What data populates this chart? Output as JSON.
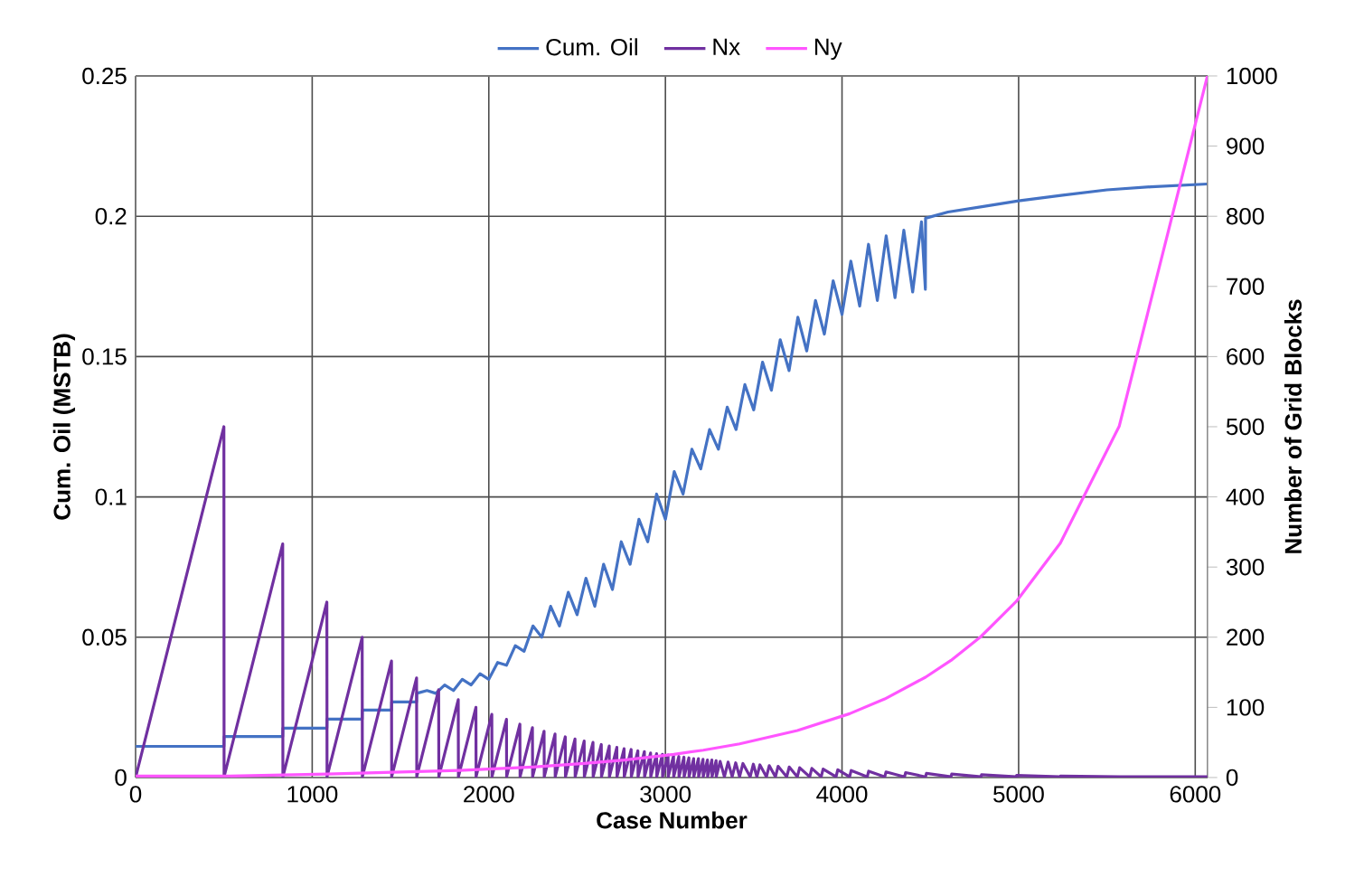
{
  "chart_data": {
    "type": "line",
    "xlabel": "Case Number",
    "ylabel": "Cum. Oil (MSTB)",
    "y2label": "Number of Grid Blocks",
    "xlim": [
      0,
      6070
    ],
    "xticks": [
      0,
      1000,
      2000,
      3000,
      4000,
      5000,
      6000
    ],
    "ylim": [
      0,
      0.25
    ],
    "yticks": [
      0,
      0.05,
      0.1,
      0.15,
      0.2,
      0.25
    ],
    "y2lim": [
      0,
      1000
    ],
    "y2ticks": [
      0,
      100,
      200,
      300,
      400,
      500,
      600,
      700,
      800,
      900,
      1000
    ],
    "grid": true,
    "legend": "top",
    "marker": "none",
    "line_style": "solid",
    "series": [
      {
        "name": "Cum. Oil",
        "color": "#4472c4",
        "x": [
          1,
          500,
          501,
          833,
          834,
          1083,
          1084,
          1283,
          1284,
          1449,
          1450,
          1591,
          1592,
          1650,
          1700,
          1750,
          1800,
          1850,
          1900,
          1950,
          2000,
          2050,
          2100,
          2150,
          2200,
          2250,
          2300,
          2350,
          2400,
          2450,
          2500,
          2550,
          2600,
          2650,
          2700,
          2750,
          2800,
          2850,
          2900,
          2950,
          3000,
          3050,
          3100,
          3150,
          3200,
          3250,
          3300,
          3350,
          3400,
          3450,
          3500,
          3550,
          3600,
          3650,
          3700,
          3750,
          3800,
          3850,
          3900,
          3950,
          4000,
          4050,
          4100,
          4150,
          4200,
          4250,
          4300,
          4350,
          4400,
          4450,
          4472,
          4473,
          4600,
          4800,
          5000,
          5250,
          5500,
          5750,
          6069
        ],
        "values": [
          0.0111,
          0.0111,
          0.0146,
          0.0146,
          0.0176,
          0.0176,
          0.0208,
          0.0208,
          0.024,
          0.024,
          0.0269,
          0.0269,
          0.03,
          0.031,
          0.03,
          0.033,
          0.031,
          0.035,
          0.033,
          0.037,
          0.035,
          0.041,
          0.04,
          0.047,
          0.045,
          0.054,
          0.05,
          0.061,
          0.054,
          0.066,
          0.058,
          0.071,
          0.061,
          0.076,
          0.067,
          0.084,
          0.076,
          0.092,
          0.084,
          0.101,
          0.092,
          0.109,
          0.101,
          0.117,
          0.11,
          0.124,
          0.117,
          0.132,
          0.124,
          0.14,
          0.131,
          0.148,
          0.138,
          0.156,
          0.145,
          0.164,
          0.152,
          0.17,
          0.158,
          0.177,
          0.165,
          0.184,
          0.168,
          0.19,
          0.17,
          0.193,
          0.171,
          0.195,
          0.173,
          0.198,
          0.174,
          0.1993,
          0.2015,
          0.2035,
          0.2055,
          0.2075,
          0.2094,
          0.2105,
          0.2115
        ]
      },
      {
        "name": "Nx",
        "color": "#7030a0",
        "axis": "y2",
        "x": [
          1,
          500,
          501,
          833,
          834,
          1083,
          1084,
          1283,
          1284,
          1449,
          1450,
          1591,
          1592,
          1716,
          1717,
          1827,
          1828,
          1927,
          1928,
          2017,
          2018,
          2100,
          2101,
          2176,
          2177,
          2247,
          2248,
          2313,
          2314,
          2375,
          2376,
          2433,
          2434,
          2488,
          2489,
          2540,
          2541,
          2590,
          2591,
          2637,
          2638,
          2682,
          2683,
          2725,
          2726,
          2766,
          2767,
          2806,
          2807,
          2844,
          2845,
          2881,
          2882,
          2916,
          2917,
          2950,
          2951,
          2983,
          2984,
          3015,
          3016,
          3046,
          3047,
          3076,
          3077,
          3105,
          3106,
          3133,
          3134,
          3160,
          3161,
          3187,
          3188,
          3213,
          3214,
          3238,
          3239,
          3263,
          3264,
          3287,
          3288,
          3310,
          3334,
          3355,
          3378,
          3398,
          3420,
          3439,
          3480,
          3498,
          3518,
          3535,
          3572,
          3588,
          3623,
          3638,
          3687,
          3701,
          3747,
          3760,
          3817,
          3829,
          3882,
          3893,
          3966,
          3976,
          4043,
          4052,
          4143,
          4151,
          4242,
          4249,
          4354,
          4360,
          4473,
          4478,
          4617,
          4621,
          4787,
          4790,
          4987,
          4989,
          5236,
          5237,
          5570,
          6069
        ],
        "values": [
          1,
          500,
          1,
          333,
          1,
          250,
          1,
          200,
          1,
          166,
          1,
          142,
          1,
          125,
          1,
          111,
          1,
          100,
          1,
          90,
          1,
          83,
          1,
          76,
          1,
          71,
          1,
          66,
          1,
          62,
          1,
          58,
          1,
          55,
          1,
          52,
          1,
          50,
          1,
          47,
          1,
          45,
          1,
          43,
          1,
          41,
          1,
          40,
          1,
          38,
          1,
          37,
          1,
          35,
          1,
          34,
          1,
          33,
          1,
          32,
          1,
          31,
          1,
          30,
          1,
          29,
          1,
          28,
          1,
          27,
          1,
          27,
          1,
          26,
          1,
          25,
          1,
          25,
          1,
          24,
          1,
          23,
          1,
          22,
          1,
          21,
          1,
          20,
          1,
          19,
          1,
          18,
          1,
          17,
          1,
          16,
          1,
          15,
          1,
          14,
          1,
          13,
          1,
          12,
          1,
          11,
          1,
          10,
          1,
          9,
          1,
          8,
          1,
          7,
          1,
          6,
          1,
          5,
          1,
          4,
          1,
          3,
          1,
          2,
          1,
          1
        ]
      },
      {
        "name": "Ny",
        "color": "#ff55ff",
        "axis": "y2",
        "x": [
          1,
          500,
          1084,
          1828,
          2248,
          2541,
          2767,
          3047,
          3214,
          3420,
          3747,
          4043,
          4242,
          4473,
          4617,
          4787,
          4987,
          5236,
          5570,
          6069
        ],
        "values": [
          2,
          2,
          5,
          10,
          15,
          20,
          25,
          33,
          39,
          48,
          67,
          91,
          112,
          143,
          167,
          201,
          251,
          334,
          501,
          1000
        ]
      }
    ]
  }
}
